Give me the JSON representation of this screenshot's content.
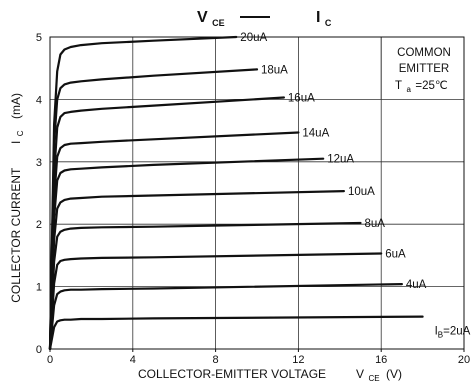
{
  "chart_data": {
    "type": "line",
    "title": {
      "x_main": "V",
      "x_sub": "CE",
      "dash": "——",
      "y_main": "I",
      "y_sub": "C"
    },
    "xlabel": {
      "main": "COLLECTOR-EMITTER VOLTAGE",
      "sym": "V",
      "sym_sub": "CE",
      "unit": "(V)"
    },
    "ylabel": {
      "main": "COLLECTOR CURRENT",
      "sym": "I",
      "sym_sub": "C",
      "unit": "(mA)"
    },
    "xlim": [
      0,
      20
    ],
    "ylim": [
      0,
      5
    ],
    "xticks": [
      "0",
      "4",
      "8",
      "12",
      "16",
      "20"
    ],
    "yticks": [
      "0",
      "1",
      "2",
      "3",
      "4",
      "5"
    ],
    "grid": true,
    "annotation": {
      "line1": "COMMON",
      "line2": "EMITTER",
      "ta_main": "T",
      "ta_sub": "a",
      "ta_rest": "=25℃"
    },
    "series": [
      {
        "name": "20uA",
        "x": [
          0,
          0.2,
          0.35,
          0.5,
          0.7,
          1.0,
          1.5,
          2.5,
          5,
          9
        ],
        "y": [
          0,
          3.6,
          4.45,
          4.72,
          4.8,
          4.84,
          4.87,
          4.9,
          4.94,
          5.0
        ]
      },
      {
        "name": "18uA",
        "x": [
          0,
          0.2,
          0.35,
          0.5,
          0.7,
          1.0,
          1.5,
          2.5,
          5,
          10
        ],
        "y": [
          0,
          3.3,
          4.0,
          4.18,
          4.24,
          4.27,
          4.29,
          4.32,
          4.38,
          4.48
        ]
      },
      {
        "name": "16uA",
        "x": [
          0,
          0.2,
          0.35,
          0.5,
          0.7,
          1.0,
          1.5,
          2.5,
          5,
          11.3
        ],
        "y": [
          0,
          2.8,
          3.55,
          3.72,
          3.78,
          3.8,
          3.82,
          3.85,
          3.9,
          4.03
        ]
      },
      {
        "name": "14uA",
        "x": [
          0,
          0.2,
          0.35,
          0.5,
          0.7,
          1.0,
          1.5,
          2.5,
          5,
          12
        ],
        "y": [
          0,
          2.4,
          3.08,
          3.22,
          3.27,
          3.29,
          3.3,
          3.32,
          3.36,
          3.47
        ]
      },
      {
        "name": "12uA",
        "x": [
          0,
          0.2,
          0.35,
          0.5,
          0.7,
          1.0,
          1.5,
          2.5,
          5,
          13.2
        ],
        "y": [
          0,
          2.1,
          2.7,
          2.82,
          2.86,
          2.88,
          2.89,
          2.91,
          2.95,
          3.05
        ]
      },
      {
        "name": "10uA",
        "x": [
          0,
          0.2,
          0.35,
          0.5,
          0.7,
          1.0,
          1.5,
          2.5,
          5,
          14.2
        ],
        "y": [
          0,
          1.75,
          2.25,
          2.35,
          2.39,
          2.41,
          2.42,
          2.44,
          2.46,
          2.53
        ]
      },
      {
        "name": "8uA",
        "x": [
          0,
          0.2,
          0.35,
          0.5,
          0.7,
          1.0,
          1.5,
          2.5,
          5,
          15
        ],
        "y": [
          0,
          1.4,
          1.8,
          1.88,
          1.91,
          1.93,
          1.94,
          1.95,
          1.96,
          2.02
        ]
      },
      {
        "name": "6uA",
        "x": [
          0,
          0.2,
          0.35,
          0.5,
          0.7,
          1.0,
          1.5,
          2.5,
          5,
          16
        ],
        "y": [
          0,
          1.05,
          1.35,
          1.41,
          1.43,
          1.44,
          1.45,
          1.46,
          1.47,
          1.53
        ]
      },
      {
        "name": "4uA",
        "x": [
          0,
          0.2,
          0.35,
          0.5,
          0.7,
          1.0,
          1.5,
          2.5,
          5,
          17
        ],
        "y": [
          0,
          0.7,
          0.88,
          0.92,
          0.94,
          0.95,
          0.95,
          0.96,
          0.97,
          1.04
        ]
      },
      {
        "name": "2uA",
        "x": [
          0,
          0.2,
          0.35,
          0.5,
          0.7,
          1.0,
          1.5,
          2.5,
          5,
          18
        ],
        "y": [
          0,
          0.35,
          0.44,
          0.46,
          0.47,
          0.47,
          0.48,
          0.48,
          0.49,
          0.52
        ]
      }
    ],
    "last_label": {
      "main": "I",
      "sub": "B",
      "rest": "=2uA"
    }
  }
}
